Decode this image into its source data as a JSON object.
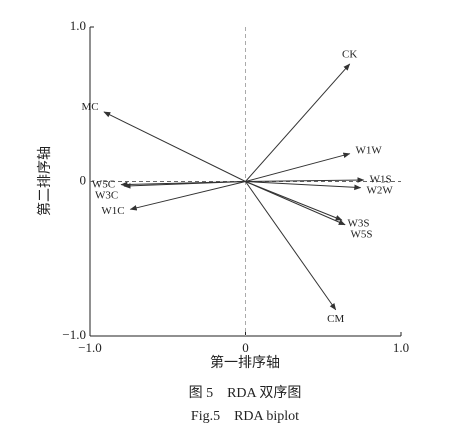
{
  "chart_data": {
    "type": "biplot",
    "xlabel": "第一排序轴",
    "ylabel": "第二排序轴",
    "xlim": [
      -1,
      1
    ],
    "ylim": [
      -1,
      1
    ],
    "xticks": [
      {
        "value": -1,
        "label": "−1.0"
      },
      0,
      {
        "value": 1,
        "label": "1.0"
      }
    ],
    "yticks": [
      {
        "value": -1,
        "label": "−1.0"
      },
      0,
      {
        "value": 1,
        "label": "1.0"
      }
    ],
    "color": "#333333",
    "vectors": [
      {
        "name": "CK",
        "x": 0.67,
        "y": 0.76
      },
      {
        "name": "MC",
        "x": -0.91,
        "y": 0.45
      },
      {
        "name": "W1W",
        "x": 0.67,
        "y": 0.18
      },
      {
        "name": "W1S",
        "x": 0.76,
        "y": 0.01
      },
      {
        "name": "W2W",
        "x": 0.74,
        "y": -0.04
      },
      {
        "name": "W3S",
        "x": 0.62,
        "y": -0.25
      },
      {
        "name": "W5S",
        "x": 0.64,
        "y": -0.28
      },
      {
        "name": "CM",
        "x": 0.58,
        "y": -0.83
      },
      {
        "name": "W5C",
        "x": -0.8,
        "y": -0.02
      },
      {
        "name": "W3C",
        "x": -0.78,
        "y": -0.03
      },
      {
        "name": "W1C",
        "x": -0.74,
        "y": -0.18
      }
    ]
  },
  "caption": {
    "zh": "图 5　RDA 双序图",
    "en": "Fig.5　RDA biplot"
  }
}
